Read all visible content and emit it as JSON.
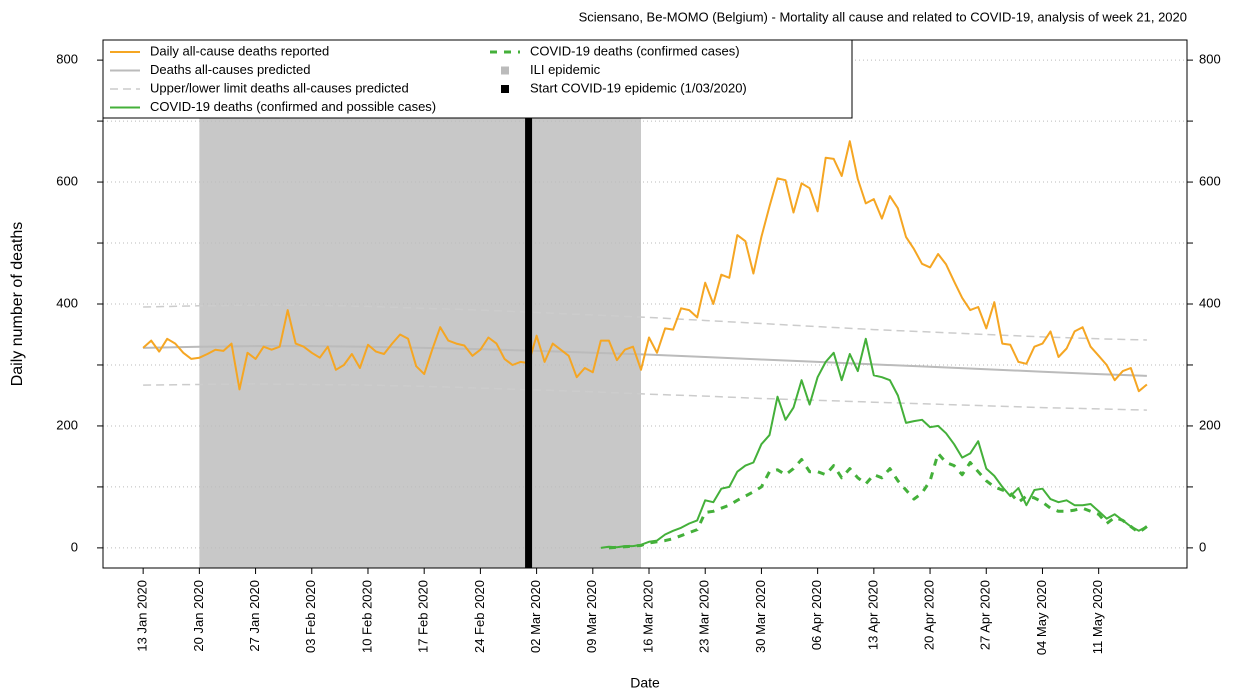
{
  "chart_data": {
    "type": "line",
    "title": "Sciensano, Be-MOMO (Belgium) - Mortality all cause and related to COVID-19, analysis of week 21, 2020",
    "y_label": "Daily number of deaths",
    "x_label": "Date",
    "xlim": [
      "2020-01-08",
      "2020-05-22"
    ],
    "ylim": [
      -33,
      833
    ],
    "yticks": [
      0,
      200,
      400,
      600,
      800
    ],
    "minor_yticks": [
      100,
      300,
      500,
      700
    ],
    "grid": true,
    "xticks": [
      {
        "value": "2020-01-13",
        "label": "13 Jan 2020"
      },
      {
        "value": "2020-01-20",
        "label": "20 Jan 2020"
      },
      {
        "value": "2020-01-27",
        "label": "27 Jan 2020"
      },
      {
        "value": "2020-02-03",
        "label": "03 Feb 2020"
      },
      {
        "value": "2020-02-10",
        "label": "10 Feb 2020"
      },
      {
        "value": "2020-02-17",
        "label": "17 Feb 2020"
      },
      {
        "value": "2020-02-24",
        "label": "24 Feb 2020"
      },
      {
        "value": "2020-03-02",
        "label": "02 Mar 2020"
      },
      {
        "value": "2020-03-09",
        "label": "09 Mar 2020"
      },
      {
        "value": "2020-03-16",
        "label": "16 Mar 2020"
      },
      {
        "value": "2020-03-23",
        "label": "23 Mar 2020"
      },
      {
        "value": "2020-03-30",
        "label": "30 Mar 2020"
      },
      {
        "value": "2020-04-06",
        "label": "06 Apr 2020"
      },
      {
        "value": "2020-04-13",
        "label": "13 Apr 2020"
      },
      {
        "value": "2020-04-20",
        "label": "20 Apr 2020"
      },
      {
        "value": "2020-04-27",
        "label": "27 Apr 2020"
      },
      {
        "value": "2020-05-04",
        "label": "04 May 2020"
      },
      {
        "value": "2020-05-11",
        "label": "11 May 2020"
      }
    ],
    "x": [
      "2020-01-13",
      "2020-01-14",
      "2020-01-15",
      "2020-01-16",
      "2020-01-17",
      "2020-01-18",
      "2020-01-19",
      "2020-01-20",
      "2020-01-21",
      "2020-01-22",
      "2020-01-23",
      "2020-01-24",
      "2020-01-25",
      "2020-01-26",
      "2020-01-27",
      "2020-01-28",
      "2020-01-29",
      "2020-01-30",
      "2020-01-31",
      "2020-02-01",
      "2020-02-02",
      "2020-02-03",
      "2020-02-04",
      "2020-02-05",
      "2020-02-06",
      "2020-02-07",
      "2020-02-08",
      "2020-02-09",
      "2020-02-10",
      "2020-02-11",
      "2020-02-12",
      "2020-02-13",
      "2020-02-14",
      "2020-02-15",
      "2020-02-16",
      "2020-02-17",
      "2020-02-18",
      "2020-02-19",
      "2020-02-20",
      "2020-02-21",
      "2020-02-22",
      "2020-02-23",
      "2020-02-24",
      "2020-02-25",
      "2020-02-26",
      "2020-02-27",
      "2020-02-28",
      "2020-02-29",
      "2020-03-01",
      "2020-03-02",
      "2020-03-03",
      "2020-03-04",
      "2020-03-05",
      "2020-03-06",
      "2020-03-07",
      "2020-03-08",
      "2020-03-09",
      "2020-03-10",
      "2020-03-11",
      "2020-03-12",
      "2020-03-13",
      "2020-03-14",
      "2020-03-15",
      "2020-03-16",
      "2020-03-17",
      "2020-03-18",
      "2020-03-19",
      "2020-03-20",
      "2020-03-21",
      "2020-03-22",
      "2020-03-23",
      "2020-03-24",
      "2020-03-25",
      "2020-03-26",
      "2020-03-27",
      "2020-03-28",
      "2020-03-29",
      "2020-03-30",
      "2020-03-31",
      "2020-04-01",
      "2020-04-02",
      "2020-04-03",
      "2020-04-04",
      "2020-04-05",
      "2020-04-06",
      "2020-04-07",
      "2020-04-08",
      "2020-04-09",
      "2020-04-10",
      "2020-04-11",
      "2020-04-12",
      "2020-04-13",
      "2020-04-14",
      "2020-04-15",
      "2020-04-16",
      "2020-04-17",
      "2020-04-18",
      "2020-04-19",
      "2020-04-20",
      "2020-04-21",
      "2020-04-22",
      "2020-04-23",
      "2020-04-24",
      "2020-04-25",
      "2020-04-26",
      "2020-04-27",
      "2020-04-28",
      "2020-04-29",
      "2020-04-30",
      "2020-05-01",
      "2020-05-02",
      "2020-05-03",
      "2020-05-04",
      "2020-05-05",
      "2020-05-06",
      "2020-05-07",
      "2020-05-08",
      "2020-05-09",
      "2020-05-10",
      "2020-05-11",
      "2020-05-12",
      "2020-05-13",
      "2020-05-14",
      "2020-05-15",
      "2020-05-16",
      "2020-05-17"
    ],
    "series": [
      {
        "name": "Daily all-cause deaths reported",
        "color": "#f5a623",
        "style": "solid",
        "values": [
          328,
          340,
          322,
          343,
          335,
          320,
          310,
          312,
          318,
          325,
          323,
          335,
          260,
          320,
          310,
          330,
          325,
          330,
          390,
          335,
          330,
          320,
          312,
          330,
          292,
          300,
          318,
          295,
          333,
          322,
          318,
          335,
          350,
          343,
          298,
          285,
          325,
          362,
          340,
          335,
          332,
          315,
          325,
          345,
          335,
          310,
          300,
          305,
          303,
          348,
          305,
          335,
          325,
          315,
          280,
          295,
          288,
          340,
          340,
          308,
          325,
          330,
          292,
          345,
          320,
          360,
          358,
          393,
          390,
          378,
          435,
          400,
          448,
          443,
          513,
          503,
          450,
          510,
          560,
          606,
          603,
          550,
          598,
          590,
          552,
          640,
          638,
          610,
          667,
          605,
          565,
          572,
          540,
          577,
          557,
          510,
          490,
          466,
          460,
          482,
          465,
          437,
          410,
          390,
          395,
          360,
          403,
          335,
          333,
          305,
          302,
          330,
          335,
          355,
          313,
          327,
          355,
          362,
          330,
          315,
          300,
          275,
          290,
          295,
          257,
          268
        ]
      },
      {
        "name": "Deaths all-causes predicted",
        "color": "#bbbbbb",
        "style": "solid",
        "x": [
          "2020-01-13",
          "2020-01-20",
          "2020-01-27",
          "2020-02-03",
          "2020-02-10",
          "2020-02-17",
          "2020-02-24",
          "2020-03-02",
          "2020-03-09",
          "2020-03-16",
          "2020-03-23",
          "2020-03-30",
          "2020-04-06",
          "2020-04-13",
          "2020-04-20",
          "2020-04-27",
          "2020-05-04",
          "2020-05-11",
          "2020-05-17"
        ],
        "values": [
          328,
          330,
          331,
          331,
          330,
          328,
          326,
          323,
          320,
          317,
          313,
          309,
          305,
          301,
          297,
          293,
          289,
          285,
          282
        ]
      },
      {
        "name": "Upper/lower limit deaths all-causes predicted",
        "color": "#cccccc",
        "style": "dashed",
        "x": [
          "2020-01-13",
          "2020-01-20",
          "2020-01-27",
          "2020-02-03",
          "2020-02-10",
          "2020-02-17",
          "2020-02-24",
          "2020-03-02",
          "2020-03-09",
          "2020-03-16",
          "2020-03-23",
          "2020-03-30",
          "2020-04-06",
          "2020-04-13",
          "2020-04-20",
          "2020-04-27",
          "2020-05-04",
          "2020-05-11",
          "2020-05-17"
        ],
        "upper": [
          395,
          397,
          398,
          398,
          396,
          393,
          390,
          386,
          382,
          378,
          373,
          368,
          363,
          358,
          354,
          350,
          346,
          343,
          341
        ],
        "lower": [
          267,
          268,
          269,
          268,
          267,
          265,
          262,
          259,
          256,
          252,
          249,
          245,
          242,
          239,
          236,
          233,
          230,
          228,
          226
        ]
      },
      {
        "name": "COVID-19 deaths (confirmed and possible cases)",
        "color": "#44b03a",
        "style": "solid",
        "values": [
          null,
          null,
          null,
          null,
          null,
          null,
          null,
          null,
          null,
          null,
          null,
          null,
          null,
          null,
          null,
          null,
          null,
          null,
          null,
          null,
          null,
          null,
          null,
          null,
          null,
          null,
          null,
          null,
          null,
          null,
          null,
          null,
          null,
          null,
          null,
          null,
          null,
          null,
          null,
          null,
          null,
          null,
          null,
          null,
          null,
          null,
          null,
          null,
          null,
          null,
          null,
          null,
          null,
          null,
          null,
          null,
          null,
          0,
          2,
          1,
          3,
          3,
          5,
          10,
          12,
          22,
          28,
          33,
          40,
          45,
          78,
          75,
          97,
          100,
          125,
          135,
          140,
          170,
          185,
          248,
          210,
          230,
          275,
          235,
          280,
          305,
          320,
          275,
          318,
          290,
          343,
          283,
          280,
          275,
          250,
          205,
          208,
          210,
          198,
          200,
          188,
          170,
          148,
          155,
          175,
          130,
          118,
          100,
          85,
          98,
          70,
          95,
          97,
          80,
          75,
          78,
          70,
          70,
          72,
          60,
          48,
          55,
          45,
          35,
          28,
          35
        ]
      },
      {
        "name": "COVID-19 deaths (confirmed cases)",
        "color": "#44b03a",
        "style": "dotted",
        "values": [
          null,
          null,
          null,
          null,
          null,
          null,
          null,
          null,
          null,
          null,
          null,
          null,
          null,
          null,
          null,
          null,
          null,
          null,
          null,
          null,
          null,
          null,
          null,
          null,
          null,
          null,
          null,
          null,
          null,
          null,
          null,
          null,
          null,
          null,
          null,
          null,
          null,
          null,
          null,
          null,
          null,
          null,
          null,
          null,
          null,
          null,
          null,
          null,
          null,
          null,
          null,
          null,
          null,
          null,
          null,
          null,
          null,
          null,
          0,
          1,
          2,
          3,
          4,
          8,
          10,
          12,
          15,
          20,
          25,
          30,
          58,
          60,
          65,
          70,
          78,
          85,
          92,
          100,
          125,
          128,
          120,
          130,
          145,
          125,
          125,
          120,
          135,
          115,
          130,
          115,
          105,
          120,
          115,
          130,
          110,
          95,
          80,
          90,
          110,
          155,
          140,
          135,
          120,
          140,
          125,
          110,
          100,
          95,
          90,
          75,
          85,
          82,
          75,
          65,
          60,
          60,
          62,
          65,
          60,
          55,
          40,
          50,
          45,
          35,
          25,
          35
        ]
      }
    ],
    "ili_epidemic": {
      "name": "ILI epidemic",
      "color": "#c8c8c8",
      "start": "2020-01-20",
      "end": "2020-03-15"
    },
    "epidemic_start": {
      "name": "Start COVID-19 epidemic (1/03/2020)",
      "color": "#000000",
      "date": "2020-03-01"
    }
  }
}
